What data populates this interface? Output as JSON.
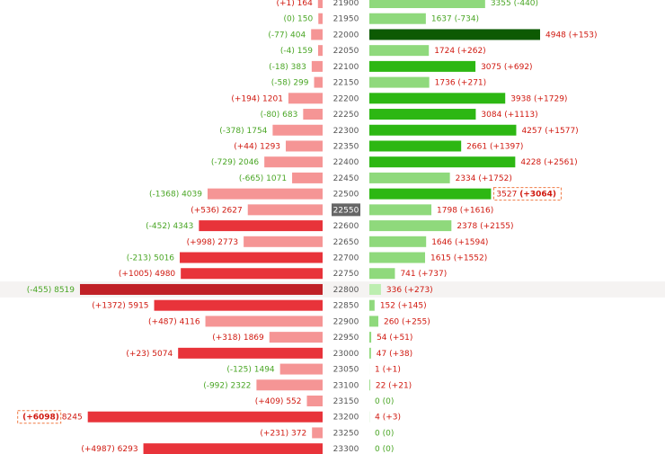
{
  "chart_data": {
    "type": "bar",
    "title": "",
    "xlabel": "",
    "ylabel": "",
    "strike_axis": "strike",
    "current_strike": 22550,
    "highlight_row": 22800,
    "colors": {
      "put_strong": "#e8333a",
      "put_weak": "#f59595",
      "put_max": "#c02026",
      "call_strong": "#2db713",
      "call_weak": "#8fd97c",
      "call_max": "#0d5a03",
      "call_faint": "#bdeeb0",
      "pos_text": "#d0180f",
      "neg_text": "#4aa625",
      "axis_text": "#555555",
      "current_bg": "#666666",
      "current_text": "#ffffff",
      "row_highlight": "#f5f3f2",
      "marker_border": "#f07a44"
    },
    "rows": [
      {
        "strike": 21900,
        "put_value": 164,
        "put_change": "+1",
        "call_value": 3355,
        "call_change": "-440"
      },
      {
        "strike": 21950,
        "put_value": 150,
        "put_change": "0",
        "call_value": 1637,
        "call_change": "-734"
      },
      {
        "strike": 22000,
        "put_value": 404,
        "put_change": "-77",
        "call_value": 4948,
        "call_change": "+153"
      },
      {
        "strike": 22050,
        "put_value": 159,
        "put_change": "-4",
        "call_value": 1724,
        "call_change": "+262"
      },
      {
        "strike": 22100,
        "put_value": 383,
        "put_change": "-18",
        "call_value": 3075,
        "call_change": "+692"
      },
      {
        "strike": 22150,
        "put_value": 299,
        "put_change": "-58",
        "call_value": 1736,
        "call_change": "+271"
      },
      {
        "strike": 22200,
        "put_value": 1201,
        "put_change": "+194",
        "call_value": 3938,
        "call_change": "+1729"
      },
      {
        "strike": 22250,
        "put_value": 683,
        "put_change": "-80",
        "call_value": 3084,
        "call_change": "+1113"
      },
      {
        "strike": 22300,
        "put_value": 1754,
        "put_change": "-378",
        "call_value": 4257,
        "call_change": "+1577"
      },
      {
        "strike": 22350,
        "put_value": 1293,
        "put_change": "+44",
        "call_value": 2661,
        "call_change": "+1397"
      },
      {
        "strike": 22400,
        "put_value": 2046,
        "put_change": "-729",
        "call_value": 4228,
        "call_change": "+2561"
      },
      {
        "strike": 22450,
        "put_value": 1071,
        "put_change": "-665",
        "call_value": 2334,
        "call_change": "+1752"
      },
      {
        "strike": 22500,
        "put_value": 4039,
        "put_change": "-1368",
        "call_value": 3527,
        "call_change": "+3064"
      },
      {
        "strike": 22550,
        "put_value": 2627,
        "put_change": "+536",
        "call_value": 1798,
        "call_change": "+1616"
      },
      {
        "strike": 22600,
        "put_value": 4343,
        "put_change": "-452",
        "call_value": 2378,
        "call_change": "+2155"
      },
      {
        "strike": 22650,
        "put_value": 2773,
        "put_change": "+998",
        "call_value": 1646,
        "call_change": "+1594"
      },
      {
        "strike": 22700,
        "put_value": 5016,
        "put_change": "-213",
        "call_value": 1615,
        "call_change": "+1552"
      },
      {
        "strike": 22750,
        "put_value": 4980,
        "put_change": "+1005",
        "call_value": 741,
        "call_change": "+737"
      },
      {
        "strike": 22800,
        "put_value": 8519,
        "put_change": "-455",
        "call_value": 336,
        "call_change": "+273"
      },
      {
        "strike": 22850,
        "put_value": 5915,
        "put_change": "+1372",
        "call_value": 152,
        "call_change": "+145"
      },
      {
        "strike": 22900,
        "put_value": 4116,
        "put_change": "+487",
        "call_value": 260,
        "call_change": "+255"
      },
      {
        "strike": 22950,
        "put_value": 1869,
        "put_change": "+318",
        "call_value": 54,
        "call_change": "+51"
      },
      {
        "strike": 23000,
        "put_value": 5074,
        "put_change": "+23",
        "call_value": 47,
        "call_change": "+38"
      },
      {
        "strike": 23050,
        "put_value": 1494,
        "put_change": "-125",
        "call_value": 1,
        "call_change": "+1"
      },
      {
        "strike": 23100,
        "put_value": 2322,
        "put_change": "-992",
        "call_value": 22,
        "call_change": "+21"
      },
      {
        "strike": 23150,
        "put_value": 552,
        "put_change": "+409",
        "call_value": 0,
        "call_change": "0"
      },
      {
        "strike": 23200,
        "put_value": 8245,
        "put_change": "+6098",
        "call_value": 4,
        "call_change": "+3"
      },
      {
        "strike": 23250,
        "put_value": 372,
        "put_change": "+231",
        "call_value": 0,
        "call_change": "0"
      },
      {
        "strike": 23300,
        "put_value": 6293,
        "put_change": "+4987",
        "call_value": 0,
        "call_change": "0"
      }
    ],
    "put_scale_max": 8519,
    "call_scale_max": 4948,
    "put_strong_rows": [
      22600,
      22700,
      22750,
      22850,
      23000,
      23200,
      23300
    ],
    "put_max_row": 22800,
    "call_strong_rows": [
      22100,
      22200,
      22250,
      22300,
      22350,
      22400,
      22500
    ],
    "call_max_row": 22000,
    "call_faint_rows": [
      22800
    ],
    "marked_call_change_row": 22500,
    "marked_put_change_row": 23200
  }
}
